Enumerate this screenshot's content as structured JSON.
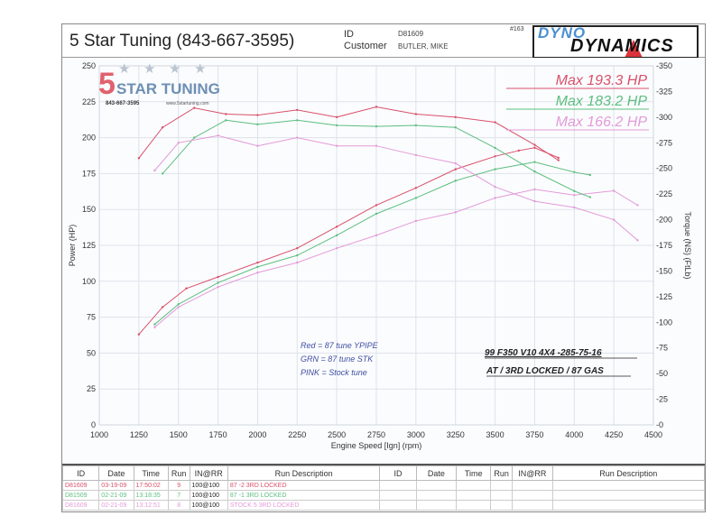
{
  "header": {
    "title": "5 Star Tuning (843-667-3595)",
    "id_label": "ID",
    "id_value": "D81609",
    "customer_label": "Customer",
    "customer_value": "BUTLER, MIKE",
    "sheet_number": "#163",
    "logo_top": "DYNO",
    "logo_bottom": "DYNAMICS"
  },
  "watermark": {
    "brand": "5 STAR TUNING",
    "phone": "843-667-3595",
    "website": "www.5startuning.com"
  },
  "annotations": {
    "handwritten": [
      "Red = 87 tune YPIPE",
      "GRN = 87 tune STK",
      "PINK = Stock tune"
    ],
    "vehicle_line1": "99 F350 V10 4X4  -285-75-16",
    "vehicle_line2": "AT / 3RD LOCKED / 87 GAS"
  },
  "legend": [
    {
      "label": "Max 193.3 HP",
      "color": "#d9506a"
    },
    {
      "label": "Max 183.2 HP",
      "color": "#5cbf7f"
    },
    {
      "label": "Max 166.2 HP",
      "color": "#e39ad8"
    }
  ],
  "chart_data": {
    "type": "line",
    "title": "",
    "xlabel": "Engine Speed [Ign] (rpm)",
    "ylabel": "Power (HP)",
    "y2label": "Torque (NS) (FtLb)",
    "xlim": [
      1000,
      4500
    ],
    "ylim": [
      0,
      250
    ],
    "y2lim": [
      0,
      350
    ],
    "x_ticks": [
      "1000",
      "1250",
      "1500",
      "1750",
      "2000",
      "2250",
      "2500",
      "2750",
      "3000",
      "3250",
      "3500",
      "3750",
      "4000",
      "4250",
      "4500"
    ],
    "y_ticks": [
      "0",
      "25",
      "50",
      "75",
      "100",
      "125",
      "150",
      "175",
      "200",
      "225",
      "250"
    ],
    "y2_ticks": [
      "0",
      "25",
      "50",
      "75",
      "100",
      "125",
      "150",
      "175",
      "200",
      "225",
      "250",
      "275",
      "300",
      "325",
      "350"
    ],
    "grid": true,
    "legend_position": "top-right",
    "series": [
      {
        "name": "Power Red (87 tune YPIPE)",
        "axis": "left",
        "color": "#d9506a",
        "x": [
          1250,
          1400,
          1550,
          1750,
          2000,
          2250,
          2500,
          2750,
          3000,
          3250,
          3500,
          3650,
          3750,
          3900
        ],
        "values": [
          63,
          82,
          95,
          103,
          113,
          123,
          138,
          153,
          165,
          178,
          187,
          191,
          193,
          186
        ]
      },
      {
        "name": "Power Green (87 tune STK)",
        "axis": "left",
        "color": "#5cbf7f",
        "x": [
          1350,
          1500,
          1750,
          2000,
          2250,
          2500,
          2750,
          3000,
          3250,
          3500,
          3750,
          4000,
          4100
        ],
        "values": [
          70,
          84,
          99,
          110,
          118,
          132,
          147,
          158,
          170,
          178,
          183,
          176,
          174
        ]
      },
      {
        "name": "Power Pink (Stock tune)",
        "axis": "left",
        "color": "#e39ad8",
        "x": [
          1350,
          1500,
          1750,
          2000,
          2250,
          2500,
          2750,
          3000,
          3250,
          3500,
          3750,
          4000,
          4250,
          4400
        ],
        "values": [
          68,
          82,
          96,
          106,
          113,
          123,
          132,
          142,
          148,
          158,
          164,
          160,
          163,
          153
        ]
      },
      {
        "name": "Torque Red",
        "axis": "right",
        "color": "#d9506a",
        "x": [
          1250,
          1400,
          1600,
          1800,
          2000,
          2250,
          2500,
          2750,
          3000,
          3250,
          3500,
          3750,
          3900
        ],
        "values": [
          260,
          290,
          309,
          303,
          302,
          307,
          300,
          310,
          303,
          300,
          295,
          273,
          258
        ]
      },
      {
        "name": "Torque Green",
        "axis": "right",
        "color": "#5cbf7f",
        "x": [
          1400,
          1600,
          1800,
          2000,
          2250,
          2500,
          2750,
          3000,
          3250,
          3500,
          3750,
          4000,
          4100
        ],
        "values": [
          245,
          280,
          297,
          293,
          297,
          292,
          291,
          292,
          290,
          270,
          247,
          228,
          222
        ]
      },
      {
        "name": "Torque Pink",
        "axis": "right",
        "color": "#e39ad8",
        "x": [
          1350,
          1500,
          1750,
          2000,
          2250,
          2500,
          2750,
          3000,
          3250,
          3500,
          3750,
          4000,
          4250,
          4400
        ],
        "values": [
          248,
          275,
          282,
          272,
          280,
          272,
          272,
          263,
          255,
          232,
          218,
          212,
          200,
          180
        ]
      }
    ]
  },
  "run_table": {
    "headers": [
      "ID",
      "Date",
      "Time",
      "Run",
      "IN@RR",
      "Run Description",
      "ID",
      "Date",
      "Time",
      "Run",
      "IN@RR",
      "Run Description"
    ],
    "rows": [
      {
        "id": "D81609",
        "date": "03-19-09",
        "time": "17:50:02",
        "run": "9",
        "inrr": "100@100",
        "desc": "87 -2 3RD LOCKED",
        "color": "#d9506a"
      },
      {
        "id": "D81509",
        "date": "02-21-09",
        "time": "13:18:35",
        "run": "7",
        "inrr": "100@100",
        "desc": "87 -1 3RD LOCKED",
        "color": "#5cbf7f"
      },
      {
        "id": "D81609",
        "date": "02-21-09",
        "time": "13:12:51",
        "run": "8",
        "inrr": "100@100",
        "desc": "STOCK 5 3RD LOCKED",
        "color": "#e39ad8"
      }
    ]
  }
}
